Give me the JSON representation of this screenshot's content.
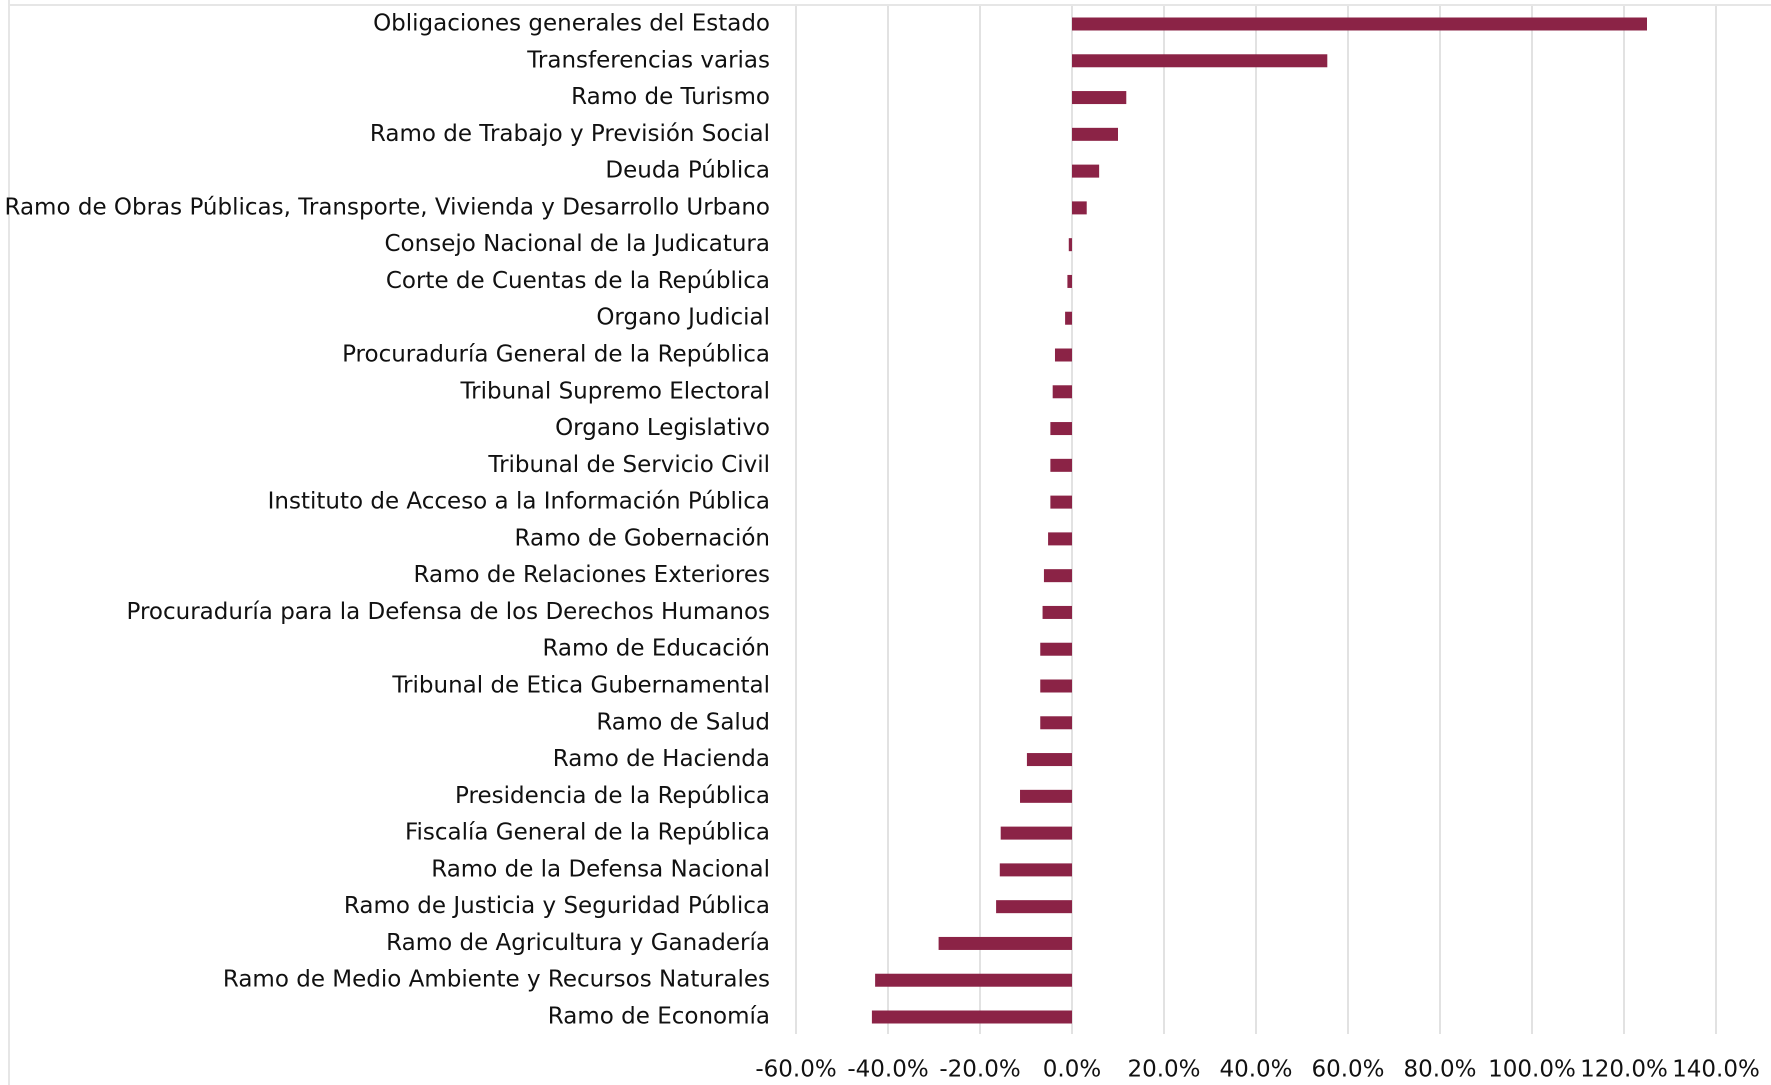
{
  "chart_data": {
    "type": "bar",
    "orientation": "horizontal",
    "color": "#8b2346",
    "grid": true,
    "categories": [
      "Obligaciones generales del Estado",
      "Transferencias varias",
      "Ramo de Turismo",
      "Ramo de Trabajo y Previsión Social",
      "Deuda Pública",
      "Ramo de Obras Públicas, Transporte, Vivienda y Desarrollo Urbano",
      "Consejo Nacional de la Judicatura",
      "Corte de Cuentas de la República",
      "Organo Judicial",
      "Procuraduría General de la República",
      "Tribunal Supremo Electoral",
      "Organo Legislativo",
      "Tribunal de Servicio Civil",
      "Instituto de Acceso a la Información Pública",
      "Ramo de Gobernación",
      "Ramo de Relaciones Exteriores",
      "Procuraduría para la Defensa de los Derechos Humanos",
      "Ramo de Educación",
      "Tribunal de Etica Gubernamental",
      "Ramo de Salud",
      "Ramo de Hacienda",
      "Presidencia de la República",
      "Fiscalía General de la República",
      "Ramo de la Defensa Nacional",
      "Ramo de Justicia y Seguridad Pública",
      "Ramo de Agricultura y Ganadería",
      "Ramo de Medio Ambiente y Recursos Naturales",
      "Ramo de Economía"
    ],
    "values": [
      125,
      55.5,
      11.8,
      10,
      5.9,
      3.2,
      -0.7,
      -1,
      -1.5,
      -3.7,
      -4.2,
      -4.7,
      -4.7,
      -4.7,
      -5.2,
      -6.1,
      -6.4,
      -6.9,
      -6.9,
      -6.9,
      -9.8,
      -11.3,
      -15.5,
      -15.7,
      -16.5,
      -29,
      -42.8,
      -43.5
    ],
    "xlim": [
      -60,
      140
    ],
    "xticks": [
      {
        "value": -60,
        "label": "-60.0%"
      },
      {
        "value": -40,
        "label": "-40.0%"
      },
      {
        "value": -20,
        "label": "-20.0%"
      },
      {
        "value": 0,
        "label": "0.0%"
      },
      {
        "value": 20,
        "label": "20.0%"
      },
      {
        "value": 40,
        "label": "40.0%"
      },
      {
        "value": 60,
        "label": "60.0%"
      },
      {
        "value": 80,
        "label": "80.0%"
      },
      {
        "value": 100,
        "label": "100.0%"
      },
      {
        "value": 120,
        "label": "120.0%"
      },
      {
        "value": 140,
        "label": "140.0%"
      }
    ]
  }
}
